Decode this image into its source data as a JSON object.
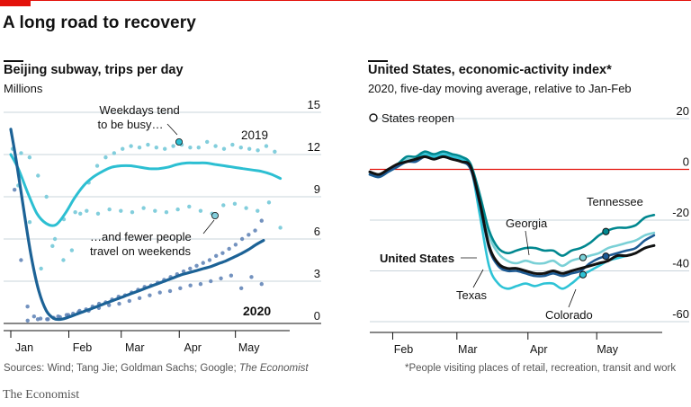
{
  "header": {
    "title": "A long road to recovery"
  },
  "left": {
    "title": "Beijing subway, trips per day",
    "subtitle": "Millions",
    "annotation_top": [
      "Weekdays tend",
      "to be busy…"
    ],
    "annotation_bottom": [
      "…and fewer people",
      "travel on weekends"
    ],
    "label_2019": "2019",
    "label_2020": "2020",
    "source_prefix": "Sources: Wind; Tang Jie; Goldman Sachs; Google; ",
    "source_italic": "The Economist"
  },
  "right": {
    "title": "United States, economic-activity index*",
    "subtitle": "2020, five-day moving average, relative to Jan-Feb",
    "legend_label": "States reopen",
    "footnote": "*People visiting places of retail, recreation, transit and work"
  },
  "brand": "The Economist",
  "colors": {
    "accent": "#e3120b",
    "line_2019": "#2cbfd2",
    "dots_2019": "#82cedc",
    "line_2020": "#1c6296",
    "dots_2020": "#5a7fb4",
    "tennessee": "#00878f",
    "georgia": "#7ad0d6",
    "united_states": "#111111",
    "texas": "#1d5a93",
    "colorado": "#2ec3d6"
  },
  "chart_data": [
    {
      "type": "line",
      "title": "Beijing subway, trips per day",
      "ylabel": "Millions",
      "ylim": [
        0,
        15
      ],
      "yticks": [
        0,
        3,
        6,
        9,
        12,
        15
      ],
      "x_unit": "day of year (1 = Jan 1)",
      "xlim": [
        1,
        150
      ],
      "xticks": [
        {
          "label": "Jan",
          "day": 1
        },
        {
          "label": "Feb",
          "day": 32
        },
        {
          "label": "Mar",
          "day": 60
        },
        {
          "label": "Apr",
          "day": 91
        },
        {
          "label": "May",
          "day": 121
        }
      ],
      "series": [
        {
          "name": "2019",
          "style": "smoothed",
          "x": [
            1,
            5,
            10,
            15,
            20,
            25,
            30,
            35,
            40,
            45,
            50,
            55,
            60,
            65,
            70,
            75,
            80,
            85,
            90,
            95,
            100,
            105,
            110,
            115,
            120,
            125,
            130,
            135,
            140,
            145
          ],
          "y": [
            12.0,
            11.0,
            9.3,
            7.8,
            7.1,
            7.0,
            7.8,
            8.9,
            9.8,
            10.4,
            10.8,
            11.1,
            11.2,
            11.2,
            11.1,
            11.0,
            11.0,
            11.1,
            11.3,
            11.4,
            11.4,
            11.4,
            11.3,
            11.2,
            11.1,
            11.0,
            10.9,
            10.8,
            10.6,
            10.3
          ]
        },
        {
          "name": "2019 daily",
          "style": "dots",
          "weekday": [
            12.4,
            12.1,
            11.8,
            10.5,
            9.0,
            6.0,
            4.5,
            5.2,
            7.8,
            10.0,
            11.2,
            11.8,
            12.1,
            12.4,
            12.6,
            12.5,
            12.7,
            12.5,
            12.4,
            12.6,
            12.7,
            12.5,
            12.5,
            12.9,
            12.6,
            12.4,
            12.7,
            12.5,
            12.4,
            12.3,
            12.6,
            12.2
          ],
          "weekend": [
            9.8,
            7.2,
            3.9,
            5.5,
            7.4,
            7.9,
            8.0,
            7.8,
            8.1,
            8.0,
            7.9,
            8.2,
            8.0,
            7.9,
            8.1,
            8.3,
            8.0,
            7.8,
            8.4,
            8.5,
            8.2,
            8.0,
            8.6,
            6.8
          ]
        },
        {
          "name": "2020",
          "style": "smoothed",
          "x": [
            1,
            4,
            8,
            12,
            16,
            20,
            24,
            28,
            32,
            36,
            40,
            44,
            48,
            52,
            56,
            60,
            64,
            68,
            72,
            76,
            80,
            84,
            88,
            92,
            96,
            100,
            104,
            108,
            112,
            116,
            120,
            124,
            128,
            132,
            136
          ],
          "y": [
            13.8,
            11.5,
            8.0,
            4.7,
            2.3,
            0.9,
            0.35,
            0.3,
            0.45,
            0.65,
            0.85,
            1.05,
            1.25,
            1.45,
            1.65,
            1.85,
            2.05,
            2.25,
            2.45,
            2.65,
            2.85,
            3.05,
            3.25,
            3.45,
            3.6,
            3.75,
            3.9,
            4.05,
            4.25,
            4.45,
            4.7,
            4.95,
            5.25,
            5.6,
            5.9
          ]
        },
        {
          "name": "2020 daily",
          "style": "dots",
          "weekday": [
            9.5,
            4.5,
            1.2,
            0.5,
            0.35,
            0.3,
            0.4,
            0.45,
            0.6,
            0.7,
            0.9,
            1.0,
            1.2,
            1.4,
            1.5,
            1.7,
            1.9,
            2.0,
            2.2,
            2.4,
            2.6,
            2.7,
            2.9,
            3.1,
            3.3,
            3.5,
            3.7,
            3.9,
            4.1,
            4.3,
            4.5,
            4.8,
            5.0,
            5.3,
            5.6,
            6.0,
            6.3,
            6.6,
            7.3
          ],
          "weekend": [
            0.2,
            0.3,
            0.3,
            0.5,
            0.6,
            0.8,
            0.9,
            1.1,
            1.3,
            1.4,
            1.6,
            1.8,
            2.0,
            2.2,
            2.3,
            2.5,
            2.7,
            2.8,
            3.0,
            3.2,
            3.4,
            2.5,
            3.3,
            2.8
          ]
        }
      ],
      "annotations": [
        "Weekdays tend to be busy…",
        "…and fewer people travel on weekends"
      ]
    },
    {
      "type": "line",
      "title": "United States, economic-activity index*",
      "subtitle": "2020, five-day moving average, relative to Jan-Feb",
      "ylim": [
        -60,
        20
      ],
      "yticks": [
        20,
        0,
        -20,
        -40,
        -60
      ],
      "reference_line": 0,
      "x_unit": "day of year (1 = Jan 1)",
      "xlim": [
        22,
        148
      ],
      "xticks": [
        {
          "label": "Feb",
          "day": 32
        },
        {
          "label": "Mar",
          "day": 60
        },
        {
          "label": "Apr",
          "day": 91
        },
        {
          "label": "May",
          "day": 121
        }
      ],
      "x": [
        22,
        26,
        30,
        34,
        38,
        42,
        46,
        50,
        54,
        58,
        62,
        66,
        70,
        74,
        78,
        82,
        86,
        90,
        94,
        98,
        102,
        106,
        110,
        114,
        118,
        122,
        126,
        130,
        134,
        138,
        142,
        146
      ],
      "series": [
        {
          "name": "Tennessee",
          "values": [
            -1,
            -2,
            0,
            2,
            5,
            5,
            7,
            6,
            7,
            6,
            5,
            2,
            -10,
            -24,
            -31,
            -33,
            -32,
            -31,
            -31,
            -32,
            -32,
            -34,
            -32,
            -31,
            -29,
            -26,
            -24,
            -23,
            -23,
            -22,
            -19,
            -18
          ]
        },
        {
          "name": "Georgia",
          "values": [
            -1,
            -2,
            0,
            2,
            4,
            4,
            6,
            5,
            6,
            5,
            4,
            1,
            -11,
            -26,
            -33,
            -36,
            -37,
            -36,
            -37,
            -37,
            -36,
            -38,
            -36,
            -35,
            -34,
            -33,
            -31,
            -30,
            -29,
            -28,
            -26,
            -25
          ]
        },
        {
          "name": "United States",
          "values": [
            -1,
            -2,
            0,
            2,
            3,
            4,
            5,
            4,
            5,
            4,
            3,
            1,
            -13,
            -30,
            -37,
            -39,
            -39,
            -40,
            -41,
            -41,
            -40,
            -41,
            -40,
            -39,
            -38,
            -37,
            -36,
            -34,
            -34,
            -33,
            -31,
            -30
          ]
        },
        {
          "name": "Texas",
          "values": [
            -2,
            -3,
            -1,
            1,
            3,
            3,
            5,
            4,
            5,
            4,
            3,
            0,
            -14,
            -31,
            -38,
            -40,
            -40,
            -41,
            -42,
            -42,
            -41,
            -42,
            -41,
            -40,
            -37,
            -35,
            -34,
            -33,
            -32,
            -31,
            -28,
            -26
          ]
        },
        {
          "name": "Colorado",
          "values": [
            -2,
            -3,
            -1,
            1,
            3,
            4,
            6,
            5,
            6,
            5,
            4,
            1,
            -18,
            -38,
            -45,
            -47,
            -46,
            -45,
            -46,
            -45,
            -45,
            -47,
            -45,
            -42,
            -40,
            -38,
            -36,
            -35,
            -34,
            -33,
            -31,
            -30
          ]
        }
      ],
      "states_reopen": [
        {
          "state": "Tennessee",
          "day": 125,
          "value": -25
        },
        {
          "state": "Georgia",
          "day": 115,
          "value": -35
        },
        {
          "state": "Texas",
          "day": 125,
          "value": -34
        },
        {
          "state": "Colorado",
          "day": 115,
          "value": -41
        }
      ],
      "legend": [
        "States reopen"
      ]
    }
  ]
}
